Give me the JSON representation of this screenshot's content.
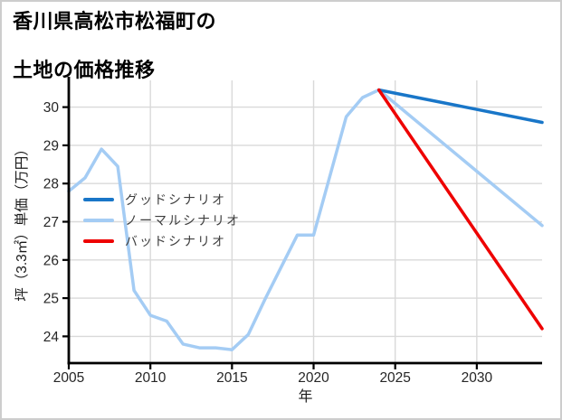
{
  "figure": {
    "border_color": "#cdcdcd",
    "background": "#ffffff"
  },
  "title": {
    "line1": "香川県高松市松福町の",
    "line2": "土地の価格推移"
  },
  "chart_data": {
    "type": "line",
    "title": "香川県高松市松福町の土地の価格推移",
    "xlabel": "年",
    "ylabel": "坪（3.3㎡）単価（万円）",
    "xlim": [
      2005,
      2034
    ],
    "ylim": [
      23.3,
      30.7
    ],
    "x_ticks": [
      2005,
      2010,
      2015,
      2020,
      2025,
      2030
    ],
    "y_ticks": [
      24,
      25,
      26,
      27,
      28,
      29,
      30
    ],
    "grid": true,
    "grid_color": "#d9d9d9",
    "axis_color": "#000000",
    "tick_label_color": "#262626",
    "legend_position": "inside-upper-left",
    "series": [
      {
        "id": "good",
        "name": "グッドシナリオ",
        "color": "#1976c8",
        "points": [
          [
            2024,
            30.45
          ],
          [
            2034,
            29.6
          ]
        ]
      },
      {
        "id": "normal",
        "name": "ノーマルシナリオ",
        "color": "#a4ccf4",
        "points": [
          [
            2005,
            27.8
          ],
          [
            2006,
            28.15
          ],
          [
            2007,
            28.9
          ],
          [
            2008,
            28.45
          ],
          [
            2009,
            25.2
          ],
          [
            2010,
            24.55
          ],
          [
            2011,
            24.4
          ],
          [
            2012,
            23.8
          ],
          [
            2013,
            23.7
          ],
          [
            2014,
            23.7
          ],
          [
            2015,
            23.65
          ],
          [
            2016,
            24.05
          ],
          [
            2017,
            24.95
          ],
          [
            2018,
            25.8
          ],
          [
            2019,
            26.65
          ],
          [
            2020,
            26.65
          ],
          [
            2021,
            28.2
          ],
          [
            2022,
            29.75
          ],
          [
            2023,
            30.25
          ],
          [
            2024,
            30.45
          ],
          [
            2034,
            26.9
          ]
        ]
      },
      {
        "id": "bad",
        "name": "バッドシナリオ",
        "color": "#ee0000",
        "points": [
          [
            2024,
            30.45
          ],
          [
            2034,
            24.2
          ]
        ]
      }
    ]
  }
}
